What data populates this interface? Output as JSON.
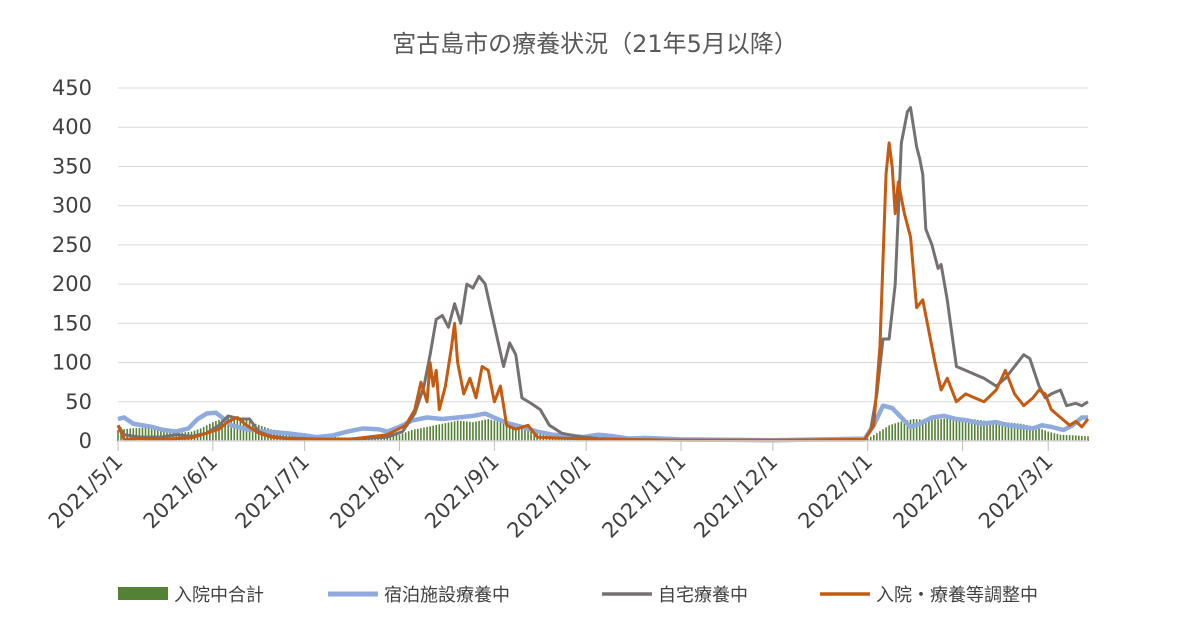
{
  "chart_data": {
    "type": "line",
    "title": "宮古島市の療養状況（21年5月以降）",
    "xlabel": "",
    "ylabel": "",
    "ylim": [
      0,
      450
    ],
    "yticks": [
      "0",
      "50",
      "100",
      "150",
      "200",
      "250",
      "300",
      "350",
      "400",
      "450"
    ],
    "xlim": [
      "2021-05-01",
      "2022-03-14"
    ],
    "xticks": [
      {
        "date": "2021-05-01",
        "label": "2021/5/1"
      },
      {
        "date": "2021-06-01",
        "label": "2021/6/1"
      },
      {
        "date": "2021-07-01",
        "label": "2021/7/1"
      },
      {
        "date": "2021-08-01",
        "label": "2021/8/1"
      },
      {
        "date": "2021-09-01",
        "label": "2021/9/1"
      },
      {
        "date": "2021-10-01",
        "label": "2021/10/1"
      },
      {
        "date": "2021-11-01",
        "label": "2021/11/1"
      },
      {
        "date": "2021-12-01",
        "label": "2021/12/1"
      },
      {
        "date": "2022-01-01",
        "label": "2022/1/1"
      },
      {
        "date": "2022-02-01",
        "label": "2022/2/1"
      },
      {
        "date": "2022-03-01",
        "label": "2022/3/1"
      }
    ],
    "grid": true,
    "legend_position": "bottom",
    "series": [
      {
        "name": "入院中合計",
        "kind": "bar",
        "color": "#548235",
        "points": [
          [
            "2021-05-01",
            14
          ],
          [
            "2021-05-05",
            16
          ],
          [
            "2021-05-10",
            17
          ],
          [
            "2021-05-15",
            14
          ],
          [
            "2021-05-20",
            10
          ],
          [
            "2021-05-25",
            12
          ],
          [
            "2021-05-28",
            16
          ],
          [
            "2021-06-01",
            24
          ],
          [
            "2021-06-05",
            30
          ],
          [
            "2021-06-10",
            30
          ],
          [
            "2021-06-15",
            22
          ],
          [
            "2021-06-20",
            15
          ],
          [
            "2021-06-25",
            12
          ],
          [
            "2021-07-01",
            10
          ],
          [
            "2021-07-05",
            7
          ],
          [
            "2021-07-15",
            4
          ],
          [
            "2021-07-25",
            5
          ],
          [
            "2021-08-01",
            8
          ],
          [
            "2021-08-05",
            14
          ],
          [
            "2021-08-10",
            18
          ],
          [
            "2021-08-15",
            22
          ],
          [
            "2021-08-20",
            26
          ],
          [
            "2021-08-25",
            24
          ],
          [
            "2021-08-30",
            28
          ],
          [
            "2021-09-05",
            22
          ],
          [
            "2021-09-10",
            18
          ],
          [
            "2021-09-15",
            12
          ],
          [
            "2021-09-20",
            8
          ],
          [
            "2021-09-25",
            6
          ],
          [
            "2021-09-30",
            4
          ],
          [
            "2021-10-10",
            3
          ],
          [
            "2021-10-20",
            2
          ],
          [
            "2021-11-01",
            1
          ],
          [
            "2021-12-01",
            0
          ],
          [
            "2021-12-31",
            1
          ],
          [
            "2022-01-04",
            10
          ],
          [
            "2022-01-08",
            20
          ],
          [
            "2022-01-12",
            25
          ],
          [
            "2022-01-16",
            28
          ],
          [
            "2022-01-20",
            27
          ],
          [
            "2022-01-25",
            28
          ],
          [
            "2022-01-30",
            30
          ],
          [
            "2022-02-04",
            28
          ],
          [
            "2022-02-10",
            25
          ],
          [
            "2022-02-15",
            24
          ],
          [
            "2022-02-20",
            22
          ],
          [
            "2022-02-25",
            18
          ],
          [
            "2022-03-01",
            12
          ],
          [
            "2022-03-05",
            8
          ],
          [
            "2022-03-10",
            7
          ],
          [
            "2022-03-14",
            6
          ]
        ]
      },
      {
        "name": "宿泊施設療養中",
        "kind": "line",
        "color": "#8FAADC",
        "points": [
          [
            "2021-05-01",
            28
          ],
          [
            "2021-05-03",
            30
          ],
          [
            "2021-05-06",
            22
          ],
          [
            "2021-05-12",
            18
          ],
          [
            "2021-05-16",
            14
          ],
          [
            "2021-05-20",
            12
          ],
          [
            "2021-05-24",
            16
          ],
          [
            "2021-05-27",
            28
          ],
          [
            "2021-05-30",
            35
          ],
          [
            "2021-06-02",
            36
          ],
          [
            "2021-06-04",
            30
          ],
          [
            "2021-06-07",
            20
          ],
          [
            "2021-06-12",
            15
          ],
          [
            "2021-06-18",
            12
          ],
          [
            "2021-06-25",
            10
          ],
          [
            "2021-07-01",
            7
          ],
          [
            "2021-07-05",
            5
          ],
          [
            "2021-07-10",
            7
          ],
          [
            "2021-07-15",
            12
          ],
          [
            "2021-07-20",
            16
          ],
          [
            "2021-07-25",
            15
          ],
          [
            "2021-07-28",
            12
          ],
          [
            "2021-08-01",
            18
          ],
          [
            "2021-08-05",
            26
          ],
          [
            "2021-08-10",
            30
          ],
          [
            "2021-08-15",
            28
          ],
          [
            "2021-08-20",
            30
          ],
          [
            "2021-08-25",
            32
          ],
          [
            "2021-08-29",
            35
          ],
          [
            "2021-09-02",
            28
          ],
          [
            "2021-09-06",
            22
          ],
          [
            "2021-09-10",
            18
          ],
          [
            "2021-09-15",
            12
          ],
          [
            "2021-09-20",
            8
          ],
          [
            "2021-09-25",
            7
          ],
          [
            "2021-09-30",
            5
          ],
          [
            "2021-10-05",
            8
          ],
          [
            "2021-10-10",
            6
          ],
          [
            "2021-10-15",
            3
          ],
          [
            "2021-10-20",
            4
          ],
          [
            "2021-11-01",
            2
          ],
          [
            "2021-12-01",
            1
          ],
          [
            "2021-12-31",
            3
          ],
          [
            "2022-01-03",
            20
          ],
          [
            "2022-01-06",
            45
          ],
          [
            "2022-01-09",
            42
          ],
          [
            "2022-01-12",
            30
          ],
          [
            "2022-01-15",
            18
          ],
          [
            "2022-01-18",
            22
          ],
          [
            "2022-01-22",
            30
          ],
          [
            "2022-01-26",
            32
          ],
          [
            "2022-01-30",
            28
          ],
          [
            "2022-02-03",
            26
          ],
          [
            "2022-02-07",
            22
          ],
          [
            "2022-02-12",
            24
          ],
          [
            "2022-02-16",
            20
          ],
          [
            "2022-02-20",
            18
          ],
          [
            "2022-02-24",
            16
          ],
          [
            "2022-02-27",
            20
          ],
          [
            "2022-03-02",
            18
          ],
          [
            "2022-03-06",
            14
          ],
          [
            "2022-03-09",
            20
          ],
          [
            "2022-03-12",
            30
          ],
          [
            "2022-03-14",
            30
          ]
        ]
      },
      {
        "name": "自宅療養中",
        "kind": "line",
        "color": "#767171",
        "points": [
          [
            "2021-05-01",
            20
          ],
          [
            "2021-05-03",
            8
          ],
          [
            "2021-05-08",
            5
          ],
          [
            "2021-05-15",
            5
          ],
          [
            "2021-05-20",
            8
          ],
          [
            "2021-05-25",
            6
          ],
          [
            "2021-05-30",
            10
          ],
          [
            "2021-06-03",
            20
          ],
          [
            "2021-06-06",
            32
          ],
          [
            "2021-06-10",
            28
          ],
          [
            "2021-06-13",
            28
          ],
          [
            "2021-06-16",
            12
          ],
          [
            "2021-06-20",
            6
          ],
          [
            "2021-06-25",
            4
          ],
          [
            "2021-07-01",
            3
          ],
          [
            "2021-07-10",
            2
          ],
          [
            "2021-07-20",
            3
          ],
          [
            "2021-07-28",
            5
          ],
          [
            "2021-08-02",
            12
          ],
          [
            "2021-08-06",
            35
          ],
          [
            "2021-08-09",
            70
          ],
          [
            "2021-08-11",
            110
          ],
          [
            "2021-08-13",
            155
          ],
          [
            "2021-08-15",
            160
          ],
          [
            "2021-08-17",
            145
          ],
          [
            "2021-08-19",
            175
          ],
          [
            "2021-08-21",
            150
          ],
          [
            "2021-08-23",
            200
          ],
          [
            "2021-08-25",
            195
          ],
          [
            "2021-08-27",
            210
          ],
          [
            "2021-08-29",
            200
          ],
          [
            "2021-08-31",
            165
          ],
          [
            "2021-09-02",
            130
          ],
          [
            "2021-09-04",
            95
          ],
          [
            "2021-09-06",
            125
          ],
          [
            "2021-09-08",
            110
          ],
          [
            "2021-09-10",
            55
          ],
          [
            "2021-09-13",
            48
          ],
          [
            "2021-09-16",
            40
          ],
          [
            "2021-09-19",
            20
          ],
          [
            "2021-09-23",
            10
          ],
          [
            "2021-09-28",
            6
          ],
          [
            "2021-10-05",
            3
          ],
          [
            "2021-10-15",
            2
          ],
          [
            "2021-11-01",
            1
          ],
          [
            "2021-12-01",
            1
          ],
          [
            "2021-12-31",
            1
          ],
          [
            "2022-01-02",
            15
          ],
          [
            "2022-01-04",
            60
          ],
          [
            "2022-01-06",
            130
          ],
          [
            "2022-01-08",
            130
          ],
          [
            "2022-01-10",
            200
          ],
          [
            "2022-01-12",
            380
          ],
          [
            "2022-01-14",
            420
          ],
          [
            "2022-01-15",
            425
          ],
          [
            "2022-01-17",
            375
          ],
          [
            "2022-01-18",
            360
          ],
          [
            "2022-01-19",
            340
          ],
          [
            "2022-01-20",
            270
          ],
          [
            "2022-01-22",
            250
          ],
          [
            "2022-01-24",
            220
          ],
          [
            "2022-01-25",
            225
          ],
          [
            "2022-01-27",
            180
          ],
          [
            "2022-01-30",
            95
          ],
          [
            "2022-02-02",
            90
          ],
          [
            "2022-02-05",
            85
          ],
          [
            "2022-02-08",
            80
          ],
          [
            "2022-02-12",
            70
          ],
          [
            "2022-02-15",
            80
          ],
          [
            "2022-02-19",
            100
          ],
          [
            "2022-02-21",
            110
          ],
          [
            "2022-02-23",
            105
          ],
          [
            "2022-02-26",
            70
          ],
          [
            "2022-02-28",
            55
          ],
          [
            "2022-03-02",
            60
          ],
          [
            "2022-03-05",
            65
          ],
          [
            "2022-03-07",
            45
          ],
          [
            "2022-03-10",
            48
          ],
          [
            "2022-03-12",
            45
          ],
          [
            "2022-03-14",
            50
          ]
        ]
      },
      {
        "name": "入院・療養等調整中",
        "kind": "line",
        "color": "#C55A11",
        "points": [
          [
            "2021-05-01",
            20
          ],
          [
            "2021-05-03",
            2
          ],
          [
            "2021-05-08",
            3
          ],
          [
            "2021-05-15",
            2
          ],
          [
            "2021-05-20",
            3
          ],
          [
            "2021-05-25",
            4
          ],
          [
            "2021-05-30",
            10
          ],
          [
            "2021-06-03",
            15
          ],
          [
            "2021-06-06",
            25
          ],
          [
            "2021-06-09",
            30
          ],
          [
            "2021-06-12",
            20
          ],
          [
            "2021-06-16",
            10
          ],
          [
            "2021-06-20",
            5
          ],
          [
            "2021-06-25",
            3
          ],
          [
            "2021-07-01",
            2
          ],
          [
            "2021-07-15",
            2
          ],
          [
            "2021-07-28",
            8
          ],
          [
            "2021-08-03",
            20
          ],
          [
            "2021-08-06",
            40
          ],
          [
            "2021-08-08",
            75
          ],
          [
            "2021-08-10",
            50
          ],
          [
            "2021-08-11",
            100
          ],
          [
            "2021-08-12",
            70
          ],
          [
            "2021-08-13",
            90
          ],
          [
            "2021-08-14",
            40
          ],
          [
            "2021-08-16",
            70
          ],
          [
            "2021-08-18",
            120
          ],
          [
            "2021-08-19",
            150
          ],
          [
            "2021-08-20",
            100
          ],
          [
            "2021-08-22",
            60
          ],
          [
            "2021-08-24",
            80
          ],
          [
            "2021-08-26",
            55
          ],
          [
            "2021-08-28",
            95
          ],
          [
            "2021-08-30",
            90
          ],
          [
            "2021-09-01",
            50
          ],
          [
            "2021-09-03",
            70
          ],
          [
            "2021-09-05",
            20
          ],
          [
            "2021-09-08",
            15
          ],
          [
            "2021-09-12",
            20
          ],
          [
            "2021-09-15",
            5
          ],
          [
            "2021-09-20",
            4
          ],
          [
            "2021-09-28",
            3
          ],
          [
            "2021-10-05",
            2
          ],
          [
            "2021-11-01",
            1
          ],
          [
            "2021-12-01",
            1
          ],
          [
            "2021-12-31",
            2
          ],
          [
            "2022-01-03",
            20
          ],
          [
            "2022-01-05",
            120
          ],
          [
            "2022-01-07",
            340
          ],
          [
            "2022-01-08",
            380
          ],
          [
            "2022-01-09",
            350
          ],
          [
            "2022-01-10",
            290
          ],
          [
            "2022-01-11",
            330
          ],
          [
            "2022-01-13",
            290
          ],
          [
            "2022-01-15",
            260
          ],
          [
            "2022-01-17",
            170
          ],
          [
            "2022-01-19",
            180
          ],
          [
            "2022-01-21",
            140
          ],
          [
            "2022-01-23",
            100
          ],
          [
            "2022-01-25",
            65
          ],
          [
            "2022-01-27",
            80
          ],
          [
            "2022-01-30",
            50
          ],
          [
            "2022-02-02",
            60
          ],
          [
            "2022-02-05",
            55
          ],
          [
            "2022-02-08",
            50
          ],
          [
            "2022-02-12",
            65
          ],
          [
            "2022-02-15",
            90
          ],
          [
            "2022-02-18",
            60
          ],
          [
            "2022-02-21",
            45
          ],
          [
            "2022-02-24",
            55
          ],
          [
            "2022-02-26",
            65
          ],
          [
            "2022-02-28",
            60
          ],
          [
            "2022-03-02",
            40
          ],
          [
            "2022-03-05",
            30
          ],
          [
            "2022-03-08",
            20
          ],
          [
            "2022-03-10",
            25
          ],
          [
            "2022-03-12",
            18
          ],
          [
            "2022-03-14",
            28
          ]
        ]
      }
    ]
  }
}
